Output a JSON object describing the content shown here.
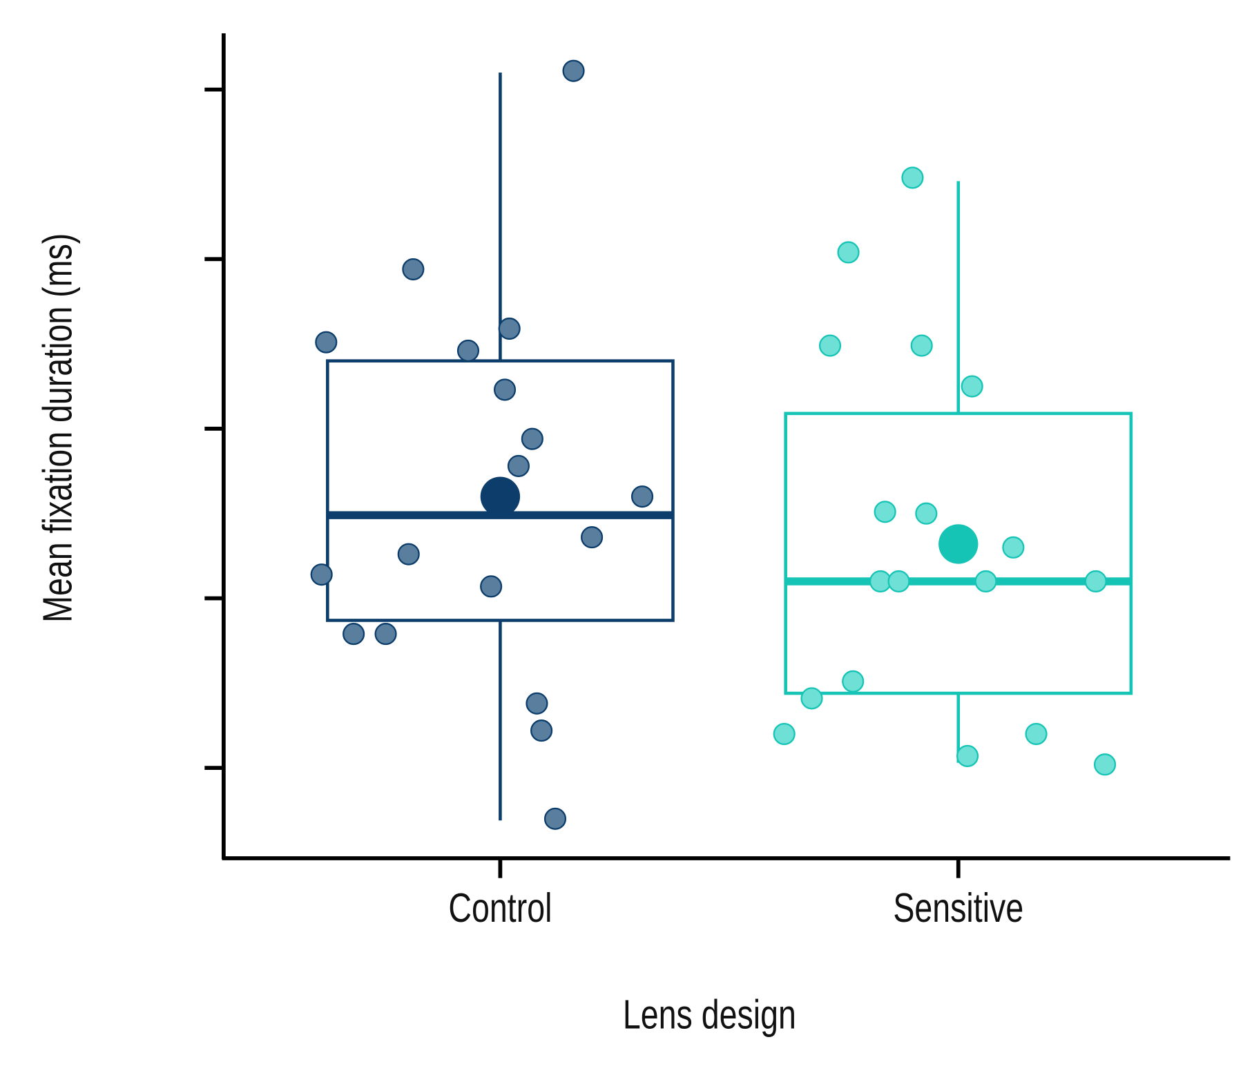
{
  "chart_data": {
    "type": "box",
    "title": "",
    "xlabel": "Lens design",
    "ylabel": "Mean fixation duration (ms)",
    "y_ticks": [
      0,
      1,
      2,
      3,
      4
    ],
    "y_tick_labels_shown": false,
    "ylim": [
      -0.53,
      4.33
    ],
    "categories": [
      "Control",
      "Sensitive"
    ],
    "groups": [
      {
        "name": "Control",
        "color": "#0c3d6b",
        "point_color": "#5a7f9e",
        "box": {
          "q1": 0.87,
          "median": 1.49,
          "q3": 2.4,
          "whisker_low": -0.31,
          "whisker_high": 4.1,
          "mean": 1.6
        },
        "points": [
          {
            "jitter": 0.16,
            "y": 4.11
          },
          {
            "jitter": -0.19,
            "y": 2.94
          },
          {
            "jitter": -0.38,
            "y": 2.51
          },
          {
            "jitter": 0.02,
            "y": 2.59
          },
          {
            "jitter": -0.07,
            "y": 2.46
          },
          {
            "jitter": 0.01,
            "y": 2.23
          },
          {
            "jitter": 0.07,
            "y": 1.94
          },
          {
            "jitter": 0.04,
            "y": 1.78
          },
          {
            "jitter": 0.31,
            "y": 1.6
          },
          {
            "jitter": 0.2,
            "y": 1.36
          },
          {
            "jitter": -0.2,
            "y": 1.26
          },
          {
            "jitter": -0.39,
            "y": 1.14
          },
          {
            "jitter": -0.02,
            "y": 1.07
          },
          {
            "jitter": -0.32,
            "y": 0.79
          },
          {
            "jitter": -0.25,
            "y": 0.79
          },
          {
            "jitter": 0.08,
            "y": 0.38
          },
          {
            "jitter": 0.09,
            "y": 0.22
          },
          {
            "jitter": 0.12,
            "y": -0.3
          }
        ]
      },
      {
        "name": "Sensitive",
        "color": "#16c4b6",
        "point_color": "#6ee0d5",
        "box": {
          "q1": 0.44,
          "median": 1.1,
          "q3": 2.09,
          "whisker_low": 0.03,
          "whisker_high": 3.46,
          "mean": 1.32
        },
        "points": [
          {
            "jitter": -0.1,
            "y": 3.48
          },
          {
            "jitter": -0.24,
            "y": 3.04
          },
          {
            "jitter": -0.28,
            "y": 2.49
          },
          {
            "jitter": -0.08,
            "y": 2.49
          },
          {
            "jitter": 0.03,
            "y": 2.25
          },
          {
            "jitter": -0.16,
            "y": 1.51
          },
          {
            "jitter": -0.07,
            "y": 1.5
          },
          {
            "jitter": 0.12,
            "y": 1.3
          },
          {
            "jitter": -0.17,
            "y": 1.1
          },
          {
            "jitter": -0.13,
            "y": 1.1
          },
          {
            "jitter": 0.06,
            "y": 1.1
          },
          {
            "jitter": 0.3,
            "y": 1.1
          },
          {
            "jitter": -0.23,
            "y": 0.51
          },
          {
            "jitter": -0.32,
            "y": 0.41
          },
          {
            "jitter": -0.38,
            "y": 0.2
          },
          {
            "jitter": 0.17,
            "y": 0.2
          },
          {
            "jitter": 0.02,
            "y": 0.07
          },
          {
            "jitter": 0.32,
            "y": 0.02
          }
        ]
      }
    ],
    "grid": false,
    "legend": "none"
  }
}
